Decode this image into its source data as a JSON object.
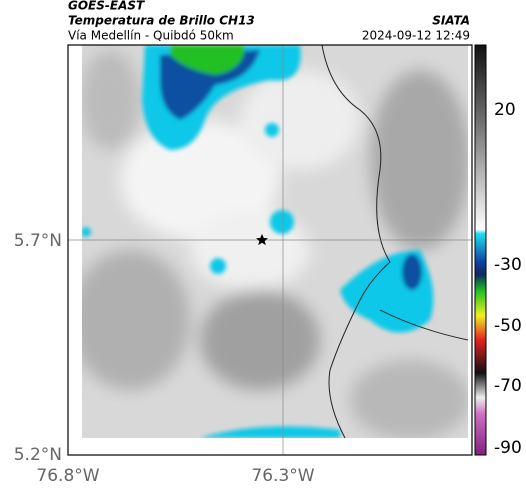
{
  "header": {
    "satellite": "GOES-EAST",
    "product": "Temperatura de Brillo CH13",
    "route": "Vía Medellín - Quibdó 50km",
    "organization": "SIATA",
    "timestamp": "2024-09-12 12:49"
  },
  "map": {
    "lat_labels": [
      "5.7°N",
      "5.2°N"
    ],
    "lon_labels": [
      "76.8°W",
      "76.3°W"
    ]
  },
  "colorbar": {
    "labels": [
      "20",
      "-30",
      "-50",
      "-70",
      "-90"
    ]
  }
}
